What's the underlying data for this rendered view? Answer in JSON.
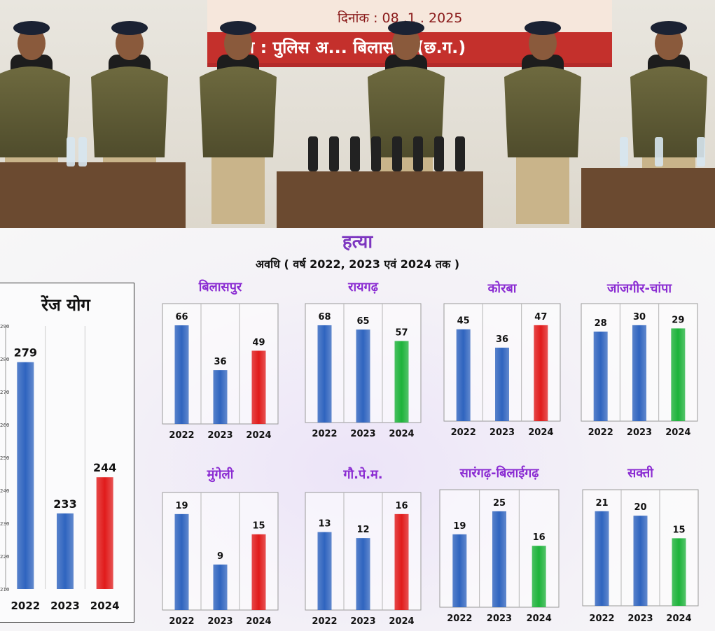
{
  "photo": {
    "date_text": "दिनांक : 08 .1 . 2025",
    "banner_text": "नीत : पुलिस अ... बिलासपुर (छ.ग.)"
  },
  "header": {
    "title": "हत्या",
    "subtitle": "अवधि ( वर्ष 2022, 2023 एवं 2024 तक )"
  },
  "colors": {
    "blue": "#2f64bf",
    "red": "#e11b1b",
    "green": "#1db33a"
  },
  "chart_data": [
    {
      "type": "bar",
      "title": "रेंज योग",
      "categories": [
        "2022",
        "2023",
        "2024"
      ],
      "values": [
        279,
        233,
        244
      ],
      "bar_colors": [
        "blue",
        "blue",
        "red"
      ],
      "ylim": [
        210,
        290
      ],
      "yticks": [
        210,
        220,
        230,
        240,
        250,
        260,
        270,
        280,
        290
      ]
    },
    {
      "type": "bar",
      "title": "बिलासपुर",
      "categories": [
        "2022",
        "2023",
        "2024"
      ],
      "values": [
        66,
        36,
        49
      ],
      "bar_colors": [
        "blue",
        "blue",
        "red"
      ]
    },
    {
      "type": "bar",
      "title": "रायगढ़",
      "categories": [
        "2022",
        "2023",
        "2024"
      ],
      "values": [
        68,
        65,
        57
      ],
      "bar_colors": [
        "blue",
        "blue",
        "green"
      ]
    },
    {
      "type": "bar",
      "title": "कोरबा",
      "categories": [
        "2022",
        "2023",
        "2024"
      ],
      "values": [
        45,
        36,
        47
      ],
      "bar_colors": [
        "blue",
        "blue",
        "red"
      ]
    },
    {
      "type": "bar",
      "title": "जांजगीर-चांपा",
      "categories": [
        "2022",
        "2023",
        "2024"
      ],
      "values": [
        28,
        30,
        29
      ],
      "bar_colors": [
        "blue",
        "blue",
        "green"
      ]
    },
    {
      "type": "bar",
      "title": "मुंगेली",
      "categories": [
        "2022",
        "2023",
        "2024"
      ],
      "values": [
        19,
        9,
        15
      ],
      "bar_colors": [
        "blue",
        "blue",
        "red"
      ]
    },
    {
      "type": "bar",
      "title": "गौ.पे.म.",
      "categories": [
        "2022",
        "2023",
        "2024"
      ],
      "values": [
        13,
        12,
        16
      ],
      "bar_colors": [
        "blue",
        "blue",
        "red"
      ]
    },
    {
      "type": "bar",
      "title": "सारंगढ़-बिलाईगढ़",
      "categories": [
        "2022",
        "2023",
        "2024"
      ],
      "values": [
        19,
        25,
        16
      ],
      "bar_colors": [
        "blue",
        "blue",
        "green"
      ]
    },
    {
      "type": "bar",
      "title": "सक्ती",
      "categories": [
        "2022",
        "2023",
        "2024"
      ],
      "values": [
        21,
        20,
        15
      ],
      "bar_colors": [
        "blue",
        "blue",
        "green"
      ]
    }
  ]
}
